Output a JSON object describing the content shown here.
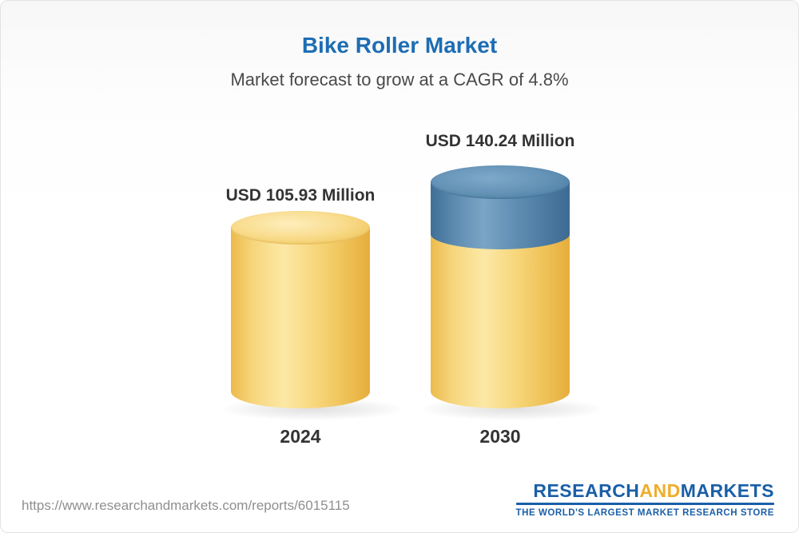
{
  "header": {
    "title": "Bike Roller Market",
    "subtitle": "Market forecast to grow at a CAGR of 4.8%"
  },
  "chart_data": {
    "type": "bar",
    "chart_style": "3d-cylinder",
    "title": "Bike Roller Market",
    "subtitle": "Market forecast to grow at a CAGR of 4.8%",
    "cagr_percent": 4.8,
    "categories": [
      "2024",
      "2030"
    ],
    "values": [
      105.93,
      140.24
    ],
    "unit": "USD Million",
    "value_labels": [
      "USD 105.93 Million",
      "USD 140.24 Million"
    ],
    "series_note": "2030 bar shows the growth increment as a blue segment stacked on the yellow base",
    "colors": {
      "base_bar": "#f2c861",
      "growth_segment": "#4d7fa6",
      "title": "#1d6db3",
      "label_text": "#333333"
    },
    "legend": "none",
    "axes": "none"
  },
  "footer": {
    "url": "https://www.researchandmarkets.com/reports/6015115",
    "logo": {
      "part1": "RESEARCH",
      "part2": "AND",
      "part3": "MARKETS",
      "tagline": "THE WORLD'S LARGEST MARKET RESEARCH STORE"
    }
  }
}
